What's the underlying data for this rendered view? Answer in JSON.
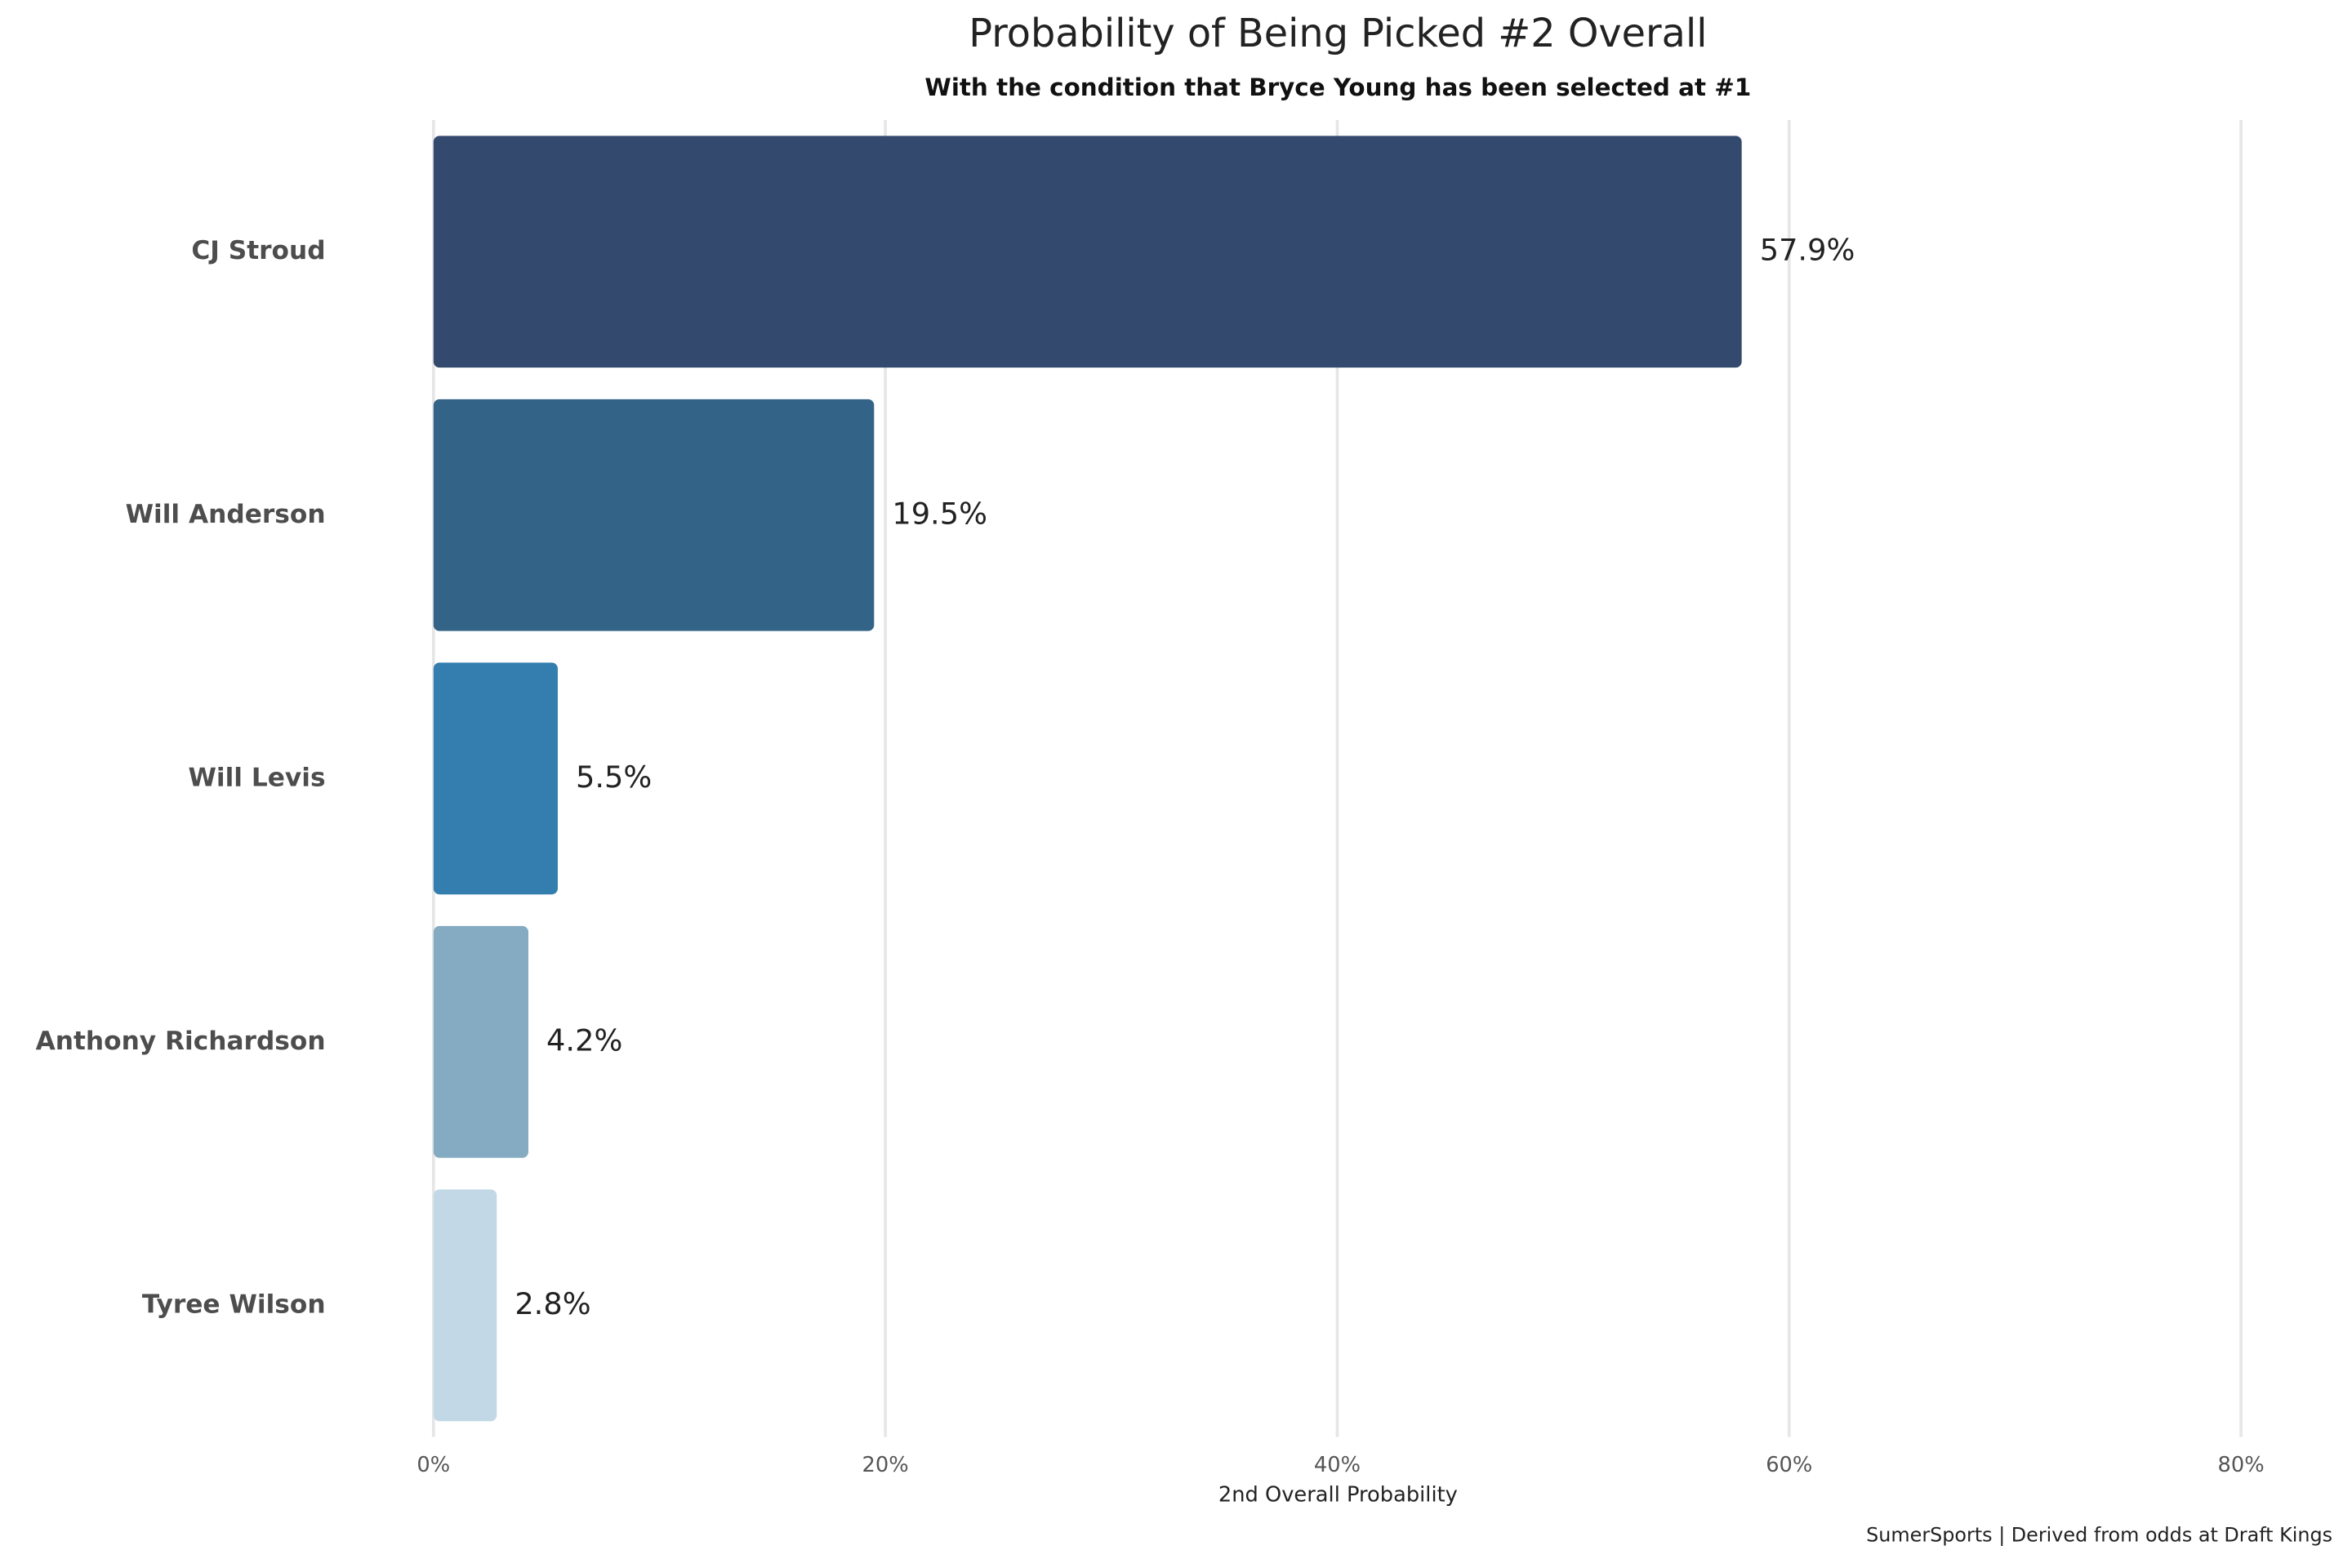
{
  "chart_data": {
    "type": "barh",
    "title": "Probability of Being Picked #2 Overall",
    "subtitle": "With the condition that Bryce Young has been selected at #1",
    "x_label": "2nd Overall Probability",
    "caption": "SumerSports | Derived from odds at Draft Kings",
    "categories": [
      "CJ Stroud",
      "Will Anderson",
      "Will Levis",
      "Anthony Richardson",
      "Tyree Wilson"
    ],
    "values": [
      57.9,
      19.5,
      5.5,
      4.2,
      2.8
    ],
    "value_labels": [
      "57.9%",
      "19.5%",
      "5.5%",
      "4.2%",
      "2.8%"
    ],
    "colors": [
      "#34496e",
      "#336387",
      "#337eae",
      "#84abc1",
      "#c2d8e6"
    ],
    "xlim": [
      0,
      80
    ],
    "xticks": [
      {
        "value": 0,
        "label": "0%"
      },
      {
        "value": 20,
        "label": "20%"
      },
      {
        "value": 40,
        "label": "40%"
      },
      {
        "value": 60,
        "label": "60%"
      },
      {
        "value": 80,
        "label": "80%"
      }
    ],
    "grid": true
  }
}
